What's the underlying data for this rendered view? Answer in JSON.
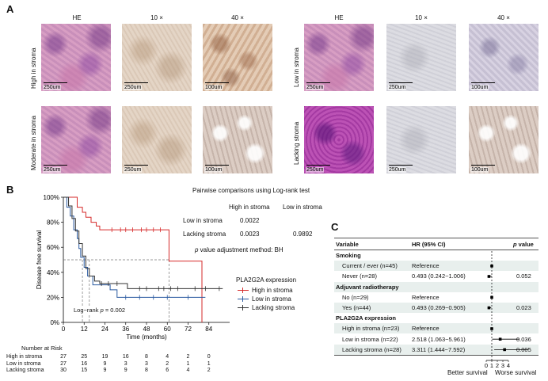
{
  "panelA": {
    "letter": "A",
    "col_headers": [
      "HE",
      "10 ×",
      "40 ×"
    ],
    "groups": [
      {
        "label": "High in stroma",
        "scales": [
          "250um",
          "250um",
          "100um"
        ]
      },
      {
        "label": "Low in stroma",
        "scales": [
          "250um",
          "250um",
          "100um"
        ]
      },
      {
        "label": "Moderate in stroma",
        "scales": [
          "250um",
          "250um",
          "100um"
        ]
      },
      {
        "label": "Lacking stroma",
        "scales": [
          "250um",
          "250um",
          "100um"
        ]
      }
    ]
  },
  "panelB": {
    "letter": "B",
    "pairwise_title": "Pairwise comparisons using Log-rank test",
    "pairwise_cols": [
      "High in stroma",
      "Low in stroma"
    ],
    "pairwise_rows": [
      {
        "label": "Low in stroma",
        "values": [
          "0.0022",
          ""
        ]
      },
      {
        "label": "Lacking stroma",
        "values": [
          "0.0023",
          "0.9892"
        ]
      }
    ],
    "adjust_p": "p",
    "adjust_rest": " value adjustment method: BH",
    "logrank_prefix": "Log−rank ",
    "logrank_p": "p",
    "logrank_value": " = 0.002",
    "legend_title": "PLA2G2A expression",
    "risk_title": "Number at Risk"
  },
  "chart_data": {
    "type": "line",
    "title": "",
    "xlabel": "Time (months)",
    "ylabel": "Disease free survival",
    "xlim": [
      0,
      96
    ],
    "ylim": [
      0,
      100
    ],
    "x_ticks": [
      0,
      12,
      24,
      36,
      48,
      60,
      72,
      84
    ],
    "y_ticks": [
      "0%",
      "20%",
      "40%",
      "60%",
      "80%",
      "100%"
    ],
    "median_line_y": 50,
    "median_drop_x": [
      11,
      15,
      61
    ],
    "series": [
      {
        "name": "High in stroma",
        "color": "#d62a2a",
        "points": [
          [
            0,
            100
          ],
          [
            8,
            100
          ],
          [
            8,
            92
          ],
          [
            11,
            92
          ],
          [
            11,
            88
          ],
          [
            13,
            88
          ],
          [
            13,
            84
          ],
          [
            16,
            84
          ],
          [
            16,
            80
          ],
          [
            19,
            80
          ],
          [
            19,
            77
          ],
          [
            21,
            77
          ],
          [
            21,
            74
          ],
          [
            61,
            74
          ],
          [
            61,
            49
          ],
          [
            80,
            49
          ],
          [
            80,
            0
          ]
        ],
        "censor": [
          28,
          33,
          36,
          40,
          45,
          48,
          52,
          56
        ]
      },
      {
        "name": "Low in stroma",
        "color": "#2a5aa0",
        "points": [
          [
            0,
            100
          ],
          [
            2,
            100
          ],
          [
            2,
            92
          ],
          [
            4,
            92
          ],
          [
            4,
            85
          ],
          [
            6,
            85
          ],
          [
            6,
            74
          ],
          [
            8,
            74
          ],
          [
            8,
            67
          ],
          [
            9,
            67
          ],
          [
            9,
            59
          ],
          [
            10,
            59
          ],
          [
            10,
            52
          ],
          [
            12,
            52
          ],
          [
            12,
            44
          ],
          [
            14,
            44
          ],
          [
            14,
            37
          ],
          [
            17,
            37
          ],
          [
            17,
            30
          ],
          [
            27,
            30
          ],
          [
            27,
            26
          ],
          [
            31,
            26
          ],
          [
            31,
            20
          ],
          [
            82,
            20
          ]
        ],
        "censor": [
          36,
          44,
          52,
          60,
          72
        ]
      },
      {
        "name": "Lacking stroma",
        "color": "#333333",
        "points": [
          [
            0,
            100
          ],
          [
            3,
            100
          ],
          [
            3,
            93
          ],
          [
            5,
            93
          ],
          [
            5,
            83
          ],
          [
            7,
            83
          ],
          [
            7,
            73
          ],
          [
            9,
            73
          ],
          [
            9,
            63
          ],
          [
            11,
            63
          ],
          [
            11,
            53
          ],
          [
            13,
            53
          ],
          [
            13,
            43
          ],
          [
            15,
            43
          ],
          [
            15,
            37
          ],
          [
            18,
            37
          ],
          [
            18,
            33
          ],
          [
            21,
            33
          ],
          [
            21,
            31
          ],
          [
            37,
            31
          ],
          [
            37,
            27
          ],
          [
            92,
            27
          ]
        ],
        "censor": [
          22,
          26,
          31,
          44,
          48,
          55,
          58,
          62,
          66,
          76,
          82,
          90
        ]
      }
    ],
    "risk_table": {
      "times": [
        0,
        12,
        24,
        36,
        48,
        60,
        72,
        84
      ],
      "rows": [
        {
          "name": "High in stroma",
          "values": [
            27,
            25,
            19,
            16,
            8,
            4,
            2,
            0
          ]
        },
        {
          "name": "Low in stroma",
          "values": [
            27,
            16,
            9,
            3,
            3,
            2,
            1,
            1
          ]
        },
        {
          "name": "Lacking stroma",
          "values": [
            30,
            15,
            9,
            9,
            8,
            6,
            4,
            2
          ]
        }
      ]
    }
  },
  "panelC": {
    "letter": "C",
    "header": {
      "variable": "Variable",
      "hr": "HR (95% CI)",
      "p_italic": "p",
      "p_rest": " value"
    },
    "rows": [
      {
        "label": "Smoking",
        "bold": true,
        "hr": "",
        "p": ""
      },
      {
        "label": "Current / ever (n=45)",
        "bold": false,
        "hr": "Reference",
        "p": "",
        "est": 1,
        "lo": 1,
        "hi": 1
      },
      {
        "label": "Never (n=28)",
        "bold": false,
        "hr": "0.493 (0.242−1.006)",
        "p": "0.052",
        "est": 0.493,
        "lo": 0.242,
        "hi": 1.006
      },
      {
        "label": "Adjuvant radiotherapy",
        "bold": true,
        "hr": "",
        "p": ""
      },
      {
        "label": "No (n=29)",
        "bold": false,
        "hr": "Reference",
        "p": "",
        "est": 1,
        "lo": 1,
        "hi": 1
      },
      {
        "label": "Yes (n=44)",
        "bold": false,
        "hr": "0.493 (0.269−0.905)",
        "p": "0.023",
        "est": 0.493,
        "lo": 0.269,
        "hi": 0.905
      },
      {
        "label": "PLA2G2A expression",
        "bold": true,
        "hr": "",
        "p": ""
      },
      {
        "label": "High in stroma (n=23)",
        "bold": false,
        "hr": "Reference",
        "p": "",
        "est": 1,
        "lo": 1,
        "hi": 1
      },
      {
        "label": "Low in stroma (n=22)",
        "bold": false,
        "hr": "2.518 (1.063−5.961)",
        "p": "0.036",
        "est": 2.518,
        "lo": 1.063,
        "hi": 5.961
      },
      {
        "label": "Lacking stroma (n=28)",
        "bold": false,
        "hr": "3.311 (1.444−7.592)",
        "p": "0.005",
        "est": 3.311,
        "lo": 1.444,
        "hi": 7.592
      }
    ],
    "axis_ticks": [
      "0",
      "1",
      "2",
      "3",
      "4"
    ],
    "better": "Better survival",
    "worse": "Worse survival"
  }
}
